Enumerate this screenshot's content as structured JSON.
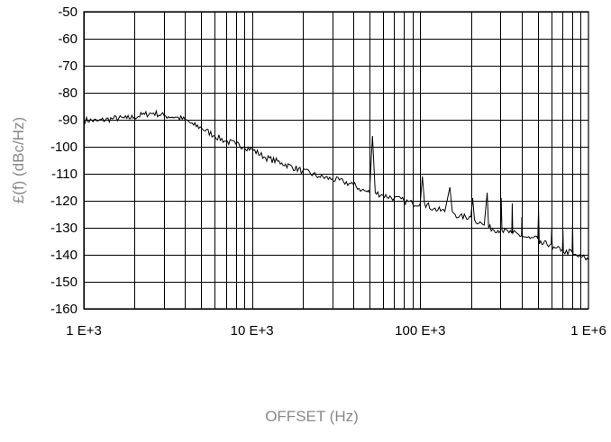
{
  "chart_data": {
    "type": "line",
    "title": "",
    "xlabel": "OFFSET (Hz)",
    "ylabel": "£(f) (dBc/Hz)",
    "x_scale": "log",
    "xlim": [
      1000,
      1000000
    ],
    "ylim": [
      -160,
      -50
    ],
    "grid": true,
    "x_tick_values": [
      1000,
      10000,
      100000,
      1000000
    ],
    "x_tick_labels": [
      "1 E+3",
      "10 E+3",
      "100 E+3",
      "1 E+6"
    ],
    "y_tick_values": [
      -50,
      -60,
      -70,
      -80,
      -90,
      -100,
      -110,
      -120,
      -130,
      -140,
      -150,
      -160
    ],
    "y_tick_labels": [
      "-50",
      "-60",
      "-70",
      "-80",
      "-90",
      "-100",
      "-110",
      "-120",
      "-130",
      "-140",
      "-150",
      "-160"
    ],
    "series": [
      {
        "color": "#000000",
        "points": [
          [
            1000,
            -90
          ],
          [
            1200,
            -90.5
          ],
          [
            1500,
            -89.5
          ],
          [
            1800,
            -89.5
          ],
          [
            2000,
            -89
          ],
          [
            2300,
            -88
          ],
          [
            2600,
            -87.5
          ],
          [
            3000,
            -88.5
          ],
          [
            3500,
            -89
          ],
          [
            4000,
            -90
          ],
          [
            4500,
            -92
          ],
          [
            5000,
            -93
          ],
          [
            6000,
            -96
          ],
          [
            7000,
            -98
          ],
          [
            8000,
            -99
          ],
          [
            9000,
            -100
          ],
          [
            10000,
            -101
          ],
          [
            12000,
            -104
          ],
          [
            15000,
            -106
          ],
          [
            20000,
            -109
          ],
          [
            25000,
            -111
          ],
          [
            30000,
            -112
          ],
          [
            35000,
            -113
          ],
          [
            40000,
            -114
          ],
          [
            45000,
            -116
          ],
          [
            50000,
            -117
          ],
          [
            52000,
            -96
          ],
          [
            54000,
            -117
          ],
          [
            60000,
            -118
          ],
          [
            70000,
            -119
          ],
          [
            80000,
            -120
          ],
          [
            90000,
            -121
          ],
          [
            100000,
            -121
          ],
          [
            103000,
            -111
          ],
          [
            106000,
            -121
          ],
          [
            120000,
            -123
          ],
          [
            140000,
            -124
          ],
          [
            150000,
            -115
          ],
          [
            155000,
            -124
          ],
          [
            170000,
            -126
          ],
          [
            200000,
            -126
          ],
          [
            205000,
            -119
          ],
          [
            210000,
            -127
          ],
          [
            240000,
            -129
          ],
          [
            250000,
            -117
          ],
          [
            255000,
            -130
          ],
          [
            300000,
            -131
          ],
          [
            303000,
            -119
          ],
          [
            306000,
            -131
          ],
          [
            350000,
            -132
          ],
          [
            352000,
            -121
          ],
          [
            355000,
            -132
          ],
          [
            400000,
            -133
          ],
          [
            402000,
            -126
          ],
          [
            405000,
            -133
          ],
          [
            450000,
            -134
          ],
          [
            500000,
            -134
          ],
          [
            505000,
            -123
          ],
          [
            510000,
            -136
          ],
          [
            600000,
            -136
          ],
          [
            605000,
            -130
          ],
          [
            610000,
            -138
          ],
          [
            700000,
            -138
          ],
          [
            705000,
            -131
          ],
          [
            710000,
            -139
          ],
          [
            800000,
            -139
          ],
          [
            805000,
            -128
          ],
          [
            810000,
            -140
          ],
          [
            900000,
            -141
          ],
          [
            950000,
            -141
          ],
          [
            1000000,
            -142
          ]
        ]
      }
    ]
  }
}
